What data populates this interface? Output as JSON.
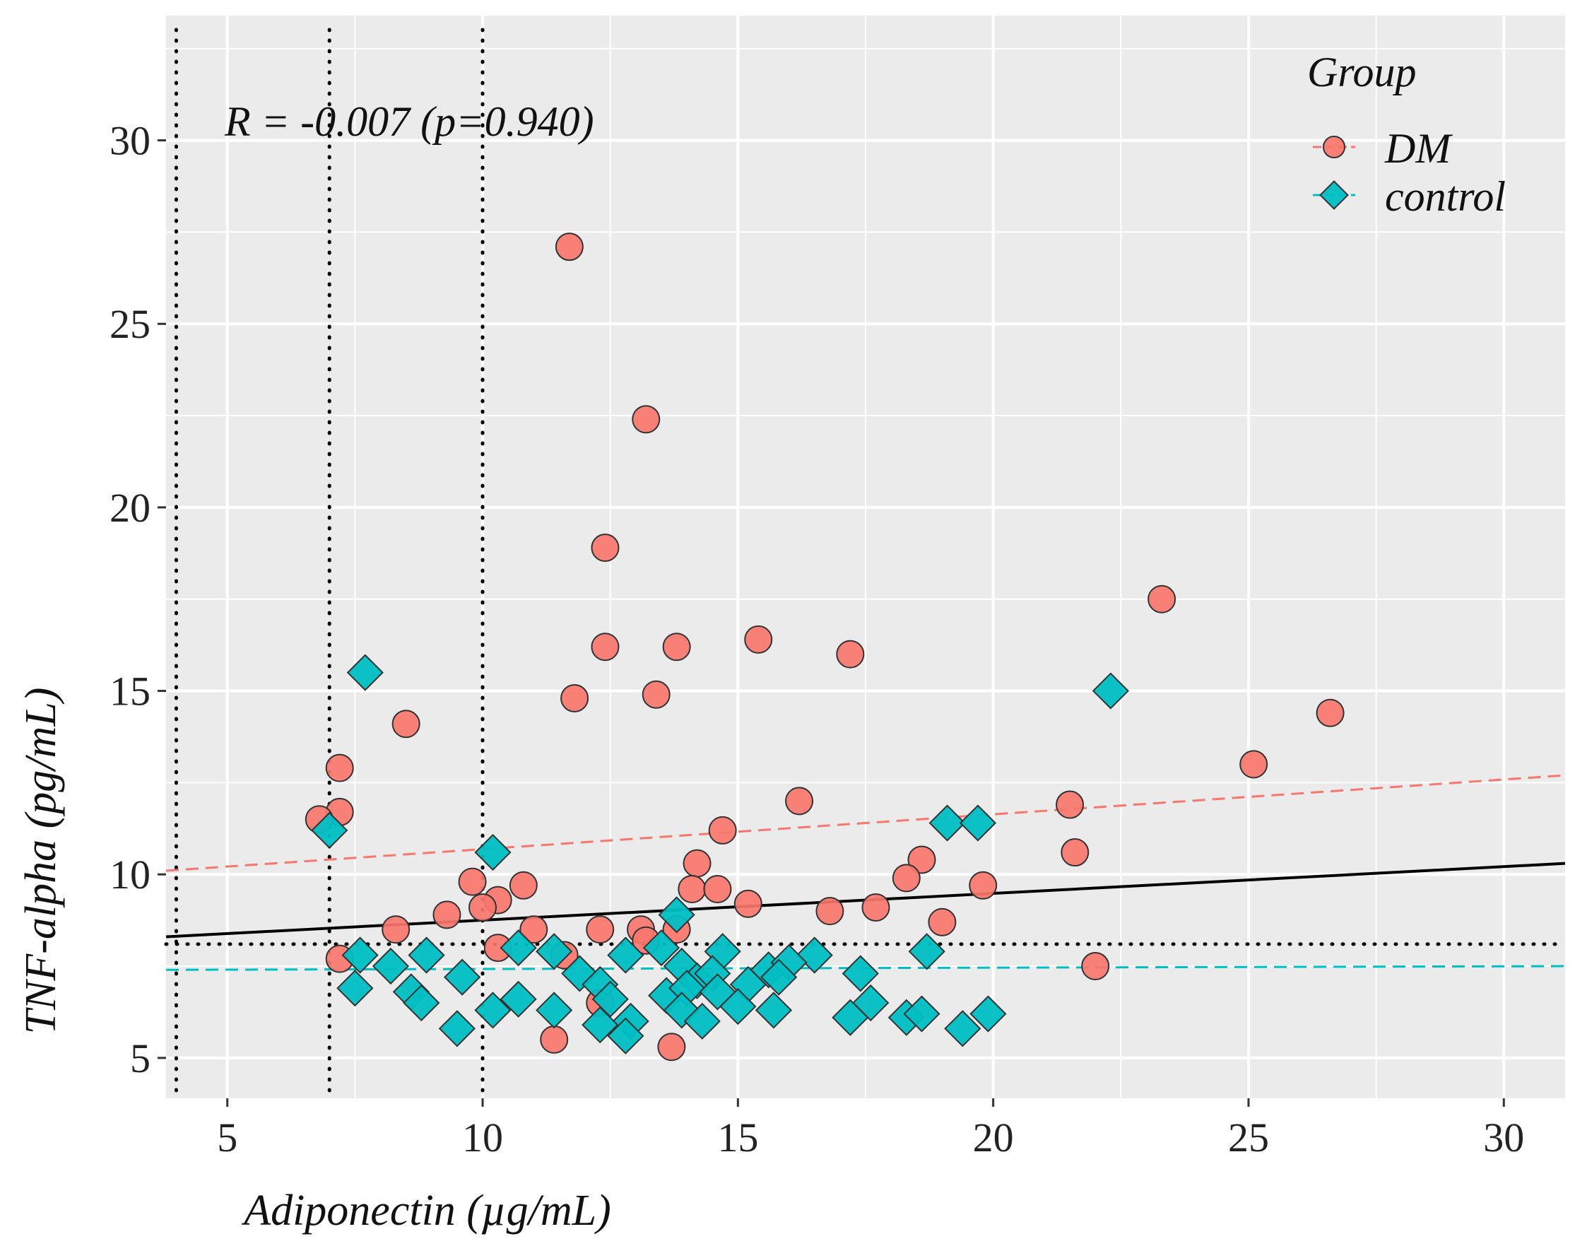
{
  "chart_data": {
    "type": "scatter",
    "title": "",
    "xlabel": "Adiponectin (µg/mL)",
    "ylabel": "TNF-alpha (pg/mL)",
    "xlim": [
      3.8,
      31.2
    ],
    "ylim": [
      3.9,
      33.4
    ],
    "x_ticks": [
      5,
      10,
      15,
      20,
      25,
      30
    ],
    "y_ticks": [
      5,
      10,
      15,
      20,
      25,
      30
    ],
    "grid": true,
    "annotation": "R = -0.007 (p=0.940)",
    "legend": {
      "title": "Group",
      "position": "top-right",
      "entries": [
        "DM",
        "control"
      ]
    },
    "colors": {
      "DM": "#F8766D",
      "control": "#00BFC4",
      "overall_fit": "#000000",
      "panel": "#EBEBEB",
      "grid": "#FFFFFF"
    },
    "reference_lines": {
      "vertical_x": [
        4,
        7,
        10
      ],
      "horizontal_y": [
        8.1
      ]
    },
    "fit_lines": [
      {
        "name": "DM",
        "x": [
          3.8,
          31.2
        ],
        "y": [
          10.1,
          12.7
        ]
      },
      {
        "name": "control",
        "x": [
          3.8,
          31.2
        ],
        "y": [
          7.4,
          7.5
        ]
      },
      {
        "name": "overall",
        "x": [
          3.8,
          31.2
        ],
        "y": [
          8.3,
          10.3
        ]
      }
    ],
    "series": [
      {
        "name": "DM",
        "marker": "circle",
        "points": [
          [
            11.7,
            27.1
          ],
          [
            13.2,
            22.4
          ],
          [
            12.4,
            18.9
          ],
          [
            23.3,
            17.5
          ],
          [
            12.4,
            16.2
          ],
          [
            13.8,
            16.2
          ],
          [
            15.4,
            16.4
          ],
          [
            17.2,
            16.0
          ],
          [
            11.8,
            14.8
          ],
          [
            13.4,
            14.9
          ],
          [
            8.5,
            14.1
          ],
          [
            26.6,
            14.4
          ],
          [
            25.1,
            13.0
          ],
          [
            7.2,
            12.9
          ],
          [
            7.2,
            11.7
          ],
          [
            6.8,
            11.5
          ],
          [
            16.2,
            12.0
          ],
          [
            21.5,
            11.9
          ],
          [
            14.7,
            11.2
          ],
          [
            21.6,
            10.6
          ],
          [
            14.2,
            10.3
          ],
          [
            18.6,
            10.4
          ],
          [
            18.3,
            9.9
          ],
          [
            9.8,
            9.8
          ],
          [
            10.8,
            9.7
          ],
          [
            19.8,
            9.7
          ],
          [
            14.1,
            9.6
          ],
          [
            14.6,
            9.6
          ],
          [
            10.3,
            9.3
          ],
          [
            10.0,
            9.1
          ],
          [
            15.2,
            9.2
          ],
          [
            17.7,
            9.1
          ],
          [
            16.8,
            9.0
          ],
          [
            9.3,
            8.9
          ],
          [
            19.0,
            8.7
          ],
          [
            11.0,
            8.5
          ],
          [
            8.3,
            8.5
          ],
          [
            12.3,
            8.5
          ],
          [
            13.1,
            8.5
          ],
          [
            13.8,
            8.5
          ],
          [
            13.2,
            8.2
          ],
          [
            10.3,
            8.0
          ],
          [
            11.6,
            7.8
          ],
          [
            7.2,
            7.7
          ],
          [
            22.0,
            7.5
          ],
          [
            12.3,
            6.5
          ],
          [
            11.4,
            5.5
          ],
          [
            13.7,
            5.3
          ]
        ]
      },
      {
        "name": "control",
        "marker": "diamond",
        "points": [
          [
            7.7,
            15.5
          ],
          [
            22.3,
            15.0
          ],
          [
            7.0,
            11.2
          ],
          [
            19.1,
            11.4
          ],
          [
            19.7,
            11.4
          ],
          [
            10.2,
            10.6
          ],
          [
            13.8,
            8.9
          ],
          [
            10.7,
            8.0
          ],
          [
            7.6,
            7.8
          ],
          [
            8.9,
            7.8
          ],
          [
            11.4,
            7.9
          ],
          [
            12.8,
            7.8
          ],
          [
            13.5,
            8.0
          ],
          [
            14.7,
            7.9
          ],
          [
            16.5,
            7.8
          ],
          [
            18.7,
            7.9
          ],
          [
            8.2,
            7.5
          ],
          [
            9.6,
            7.2
          ],
          [
            11.9,
            7.3
          ],
          [
            12.3,
            7.0
          ],
          [
            13.9,
            7.5
          ],
          [
            14.2,
            7.1
          ],
          [
            14.5,
            7.3
          ],
          [
            15.2,
            7.0
          ],
          [
            15.6,
            7.4
          ],
          [
            16.0,
            7.6
          ],
          [
            17.4,
            7.3
          ],
          [
            7.5,
            6.9
          ],
          [
            8.6,
            6.8
          ],
          [
            8.8,
            6.5
          ],
          [
            10.7,
            6.6
          ],
          [
            12.5,
            6.6
          ],
          [
            13.6,
            6.7
          ],
          [
            14.0,
            6.9
          ],
          [
            14.6,
            6.8
          ],
          [
            15.0,
            6.4
          ],
          [
            15.8,
            7.2
          ],
          [
            17.6,
            6.5
          ],
          [
            10.2,
            6.3
          ],
          [
            11.4,
            6.3
          ],
          [
            12.9,
            6.0
          ],
          [
            13.9,
            6.3
          ],
          [
            14.3,
            6.0
          ],
          [
            15.7,
            6.3
          ],
          [
            17.2,
            6.1
          ],
          [
            18.3,
            6.1
          ],
          [
            18.6,
            6.2
          ],
          [
            19.9,
            6.2
          ],
          [
            9.5,
            5.8
          ],
          [
            12.3,
            5.9
          ],
          [
            12.8,
            5.6
          ],
          [
            19.4,
            5.8
          ]
        ]
      }
    ]
  }
}
